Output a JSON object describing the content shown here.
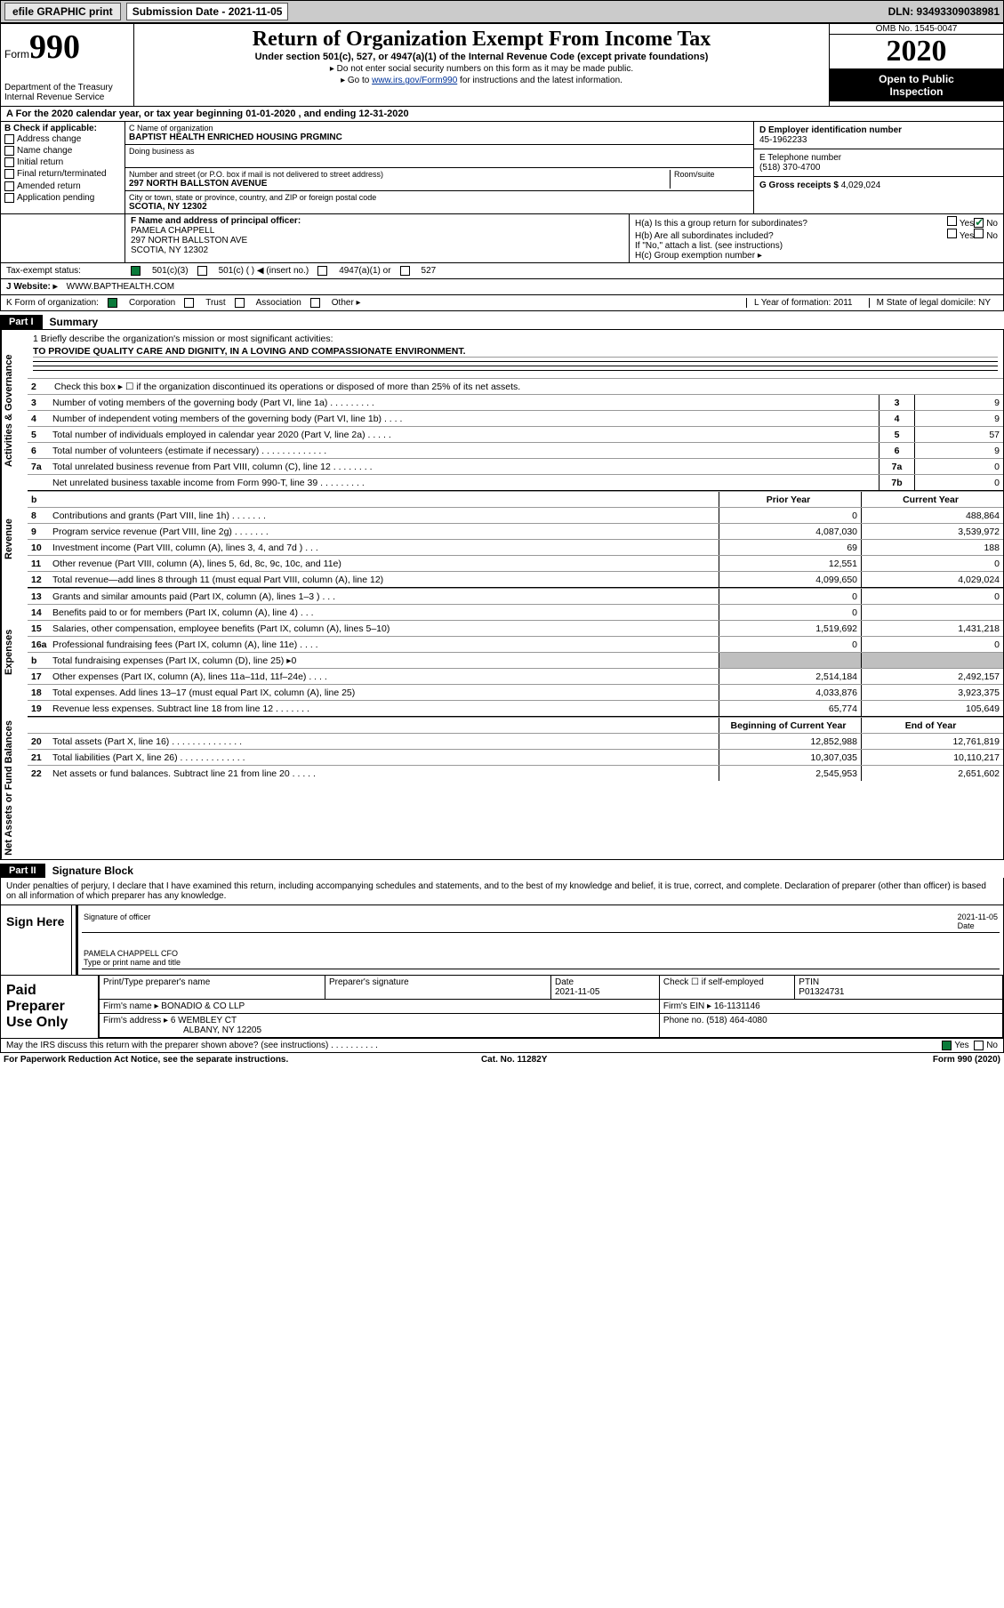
{
  "topbar": {
    "efile_label": "efile GRAPHIC print",
    "subdate_label": "Submission Date - 2021-11-05",
    "dln": "DLN: 93493309038981"
  },
  "header": {
    "form_prefix": "Form",
    "form_num": "990",
    "dept1": "Department of the Treasury",
    "dept2": "Internal Revenue Service",
    "title": "Return of Organization Exempt From Income Tax",
    "sub": "Under section 501(c), 527, or 4947(a)(1) of the Internal Revenue Code (except private foundations)",
    "inst1": "▸ Do not enter social security numbers on this form as it may be made public.",
    "inst2_pre": "▸ Go to ",
    "inst2_link": "www.irs.gov/Form990",
    "inst2_post": " for instructions and the latest information.",
    "omb": "OMB No. 1545-0047",
    "year": "2020",
    "open1": "Open to Public",
    "open2": "Inspection"
  },
  "period": "For the 2020 calendar year, or tax year beginning 01-01-2020   , and ending 12-31-2020",
  "boxB": {
    "label": "B Check if applicable:",
    "items": [
      "Address change",
      "Name change",
      "Initial return",
      "Final return/terminated",
      "Amended return",
      "Application pending"
    ]
  },
  "boxC": {
    "name_lbl": "C Name of organization",
    "name": "BAPTIST HEALTH ENRICHED HOUSING PRGMINC",
    "dba_lbl": "Doing business as",
    "street_lbl": "Number and street (or P.O. box if mail is not delivered to street address)",
    "room_lbl": "Room/suite",
    "street": "297 NORTH BALLSTON AVENUE",
    "city_lbl": "City or town, state or province, country, and ZIP or foreign postal code",
    "city": "SCOTIA, NY  12302"
  },
  "boxD": {
    "lbl": "D Employer identification number",
    "val": "45-1962233"
  },
  "boxE": {
    "lbl": "E Telephone number",
    "val": "(518) 370-4700"
  },
  "boxG": {
    "lbl": "G Gross receipts $",
    "val": "4,029,024"
  },
  "boxF": {
    "lbl": "F  Name and address of principal officer:",
    "name": "PAMELA CHAPPELL",
    "street": "297 NORTH BALLSTON AVE",
    "city": "SCOTIA, NY  12302"
  },
  "boxH": {
    "a": "H(a)  Is this a group return for subordinates?",
    "b": "H(b)  Are all subordinates included?",
    "b2": "If \"No,\" attach a list. (see instructions)",
    "c": "H(c)  Group exemption number ▸",
    "yes": "Yes",
    "no": "No"
  },
  "taxstatus": {
    "lbl": "Tax-exempt status:",
    "c3": "501(c)(3)",
    "c": "501(c) (  ) ◀ (insert no.)",
    "a1": "4947(a)(1) or",
    "s527": "527"
  },
  "siteJ": {
    "lbl": "J    Website: ▸",
    "val": "WWW.BAPTHEALTH.COM"
  },
  "korg": {
    "lbl": "K Form of organization:",
    "corp": "Corporation",
    "trust": "Trust",
    "assoc": "Association",
    "other": "Other ▸",
    "L": "L Year of formation: 2011",
    "M": "M State of legal domicile: NY"
  },
  "part1": {
    "blk": "Part I",
    "ttl": "Summary"
  },
  "summary": {
    "q1": "1   Briefly describe the organization's mission or most significant activities:",
    "mission": "TO PROVIDE QUALITY CARE AND DIGNITY, IN A LOVING AND COMPASSIONATE ENVIRONMENT.",
    "q2": "Check this box ▸ ☐  if the organization discontinued its operations or disposed of more than 25% of its net assets."
  },
  "gov": {
    "rows": [
      {
        "n": "3",
        "t": "Number of voting members of the governing body (Part VI, line 1a)   .    .    .    .    .    .    .    .    .",
        "b": "3",
        "v": "9"
      },
      {
        "n": "4",
        "t": "Number of independent voting members of the governing body (Part VI, line 1b)    .    .    .    .",
        "b": "4",
        "v": "9"
      },
      {
        "n": "5",
        "t": "Total number of individuals employed in calendar year 2020 (Part V, line 2a)    .    .    .    .    .",
        "b": "5",
        "v": "57"
      },
      {
        "n": "6",
        "t": "Total number of volunteers (estimate if necessary)    .    .    .    .    .    .    .    .    .    .    .    .    .",
        "b": "6",
        "v": "9"
      },
      {
        "n": "7a",
        "t": "Total unrelated business revenue from Part VIII, column (C), line 12    .    .    .    .    .    .    .    .",
        "b": "7a",
        "v": "0"
      },
      {
        "n": "",
        "t": "Net unrelated business taxable income from Form 990-T, line 39    .    .    .    .    .    .    .    .    .",
        "b": "7b",
        "v": "0"
      }
    ]
  },
  "colhdr": {
    "prior": "Prior Year",
    "curr": "Current Year",
    "beg": "Beginning of Current Year",
    "end": "End of Year"
  },
  "revenue": [
    {
      "n": "8",
      "t": "Contributions and grants (Part VIII, line 1h)    .    .    .    .    .    .    .",
      "p": "0",
      "c": "488,864"
    },
    {
      "n": "9",
      "t": "Program service revenue (Part VIII, line 2g)    .    .    .    .    .    .    .",
      "p": "4,087,030",
      "c": "3,539,972"
    },
    {
      "n": "10",
      "t": "Investment income (Part VIII, column (A), lines 3, 4, and 7d )    .    .    .",
      "p": "69",
      "c": "188"
    },
    {
      "n": "11",
      "t": "Other revenue (Part VIII, column (A), lines 5, 6d, 8c, 9c, 10c, and 11e)",
      "p": "12,551",
      "c": "0"
    },
    {
      "n": "12",
      "t": "Total revenue—add lines 8 through 11 (must equal Part VIII, column (A), line 12)",
      "p": "4,099,650",
      "c": "4,029,024"
    }
  ],
  "expenses": [
    {
      "n": "13",
      "t": "Grants and similar amounts paid (Part IX, column (A), lines 1–3 )    .    .    .",
      "p": "0",
      "c": "0"
    },
    {
      "n": "14",
      "t": "Benefits paid to or for members (Part IX, column (A), line 4)    .    .    .",
      "p": "0",
      "c": ""
    },
    {
      "n": "15",
      "t": "Salaries, other compensation, employee benefits (Part IX, column (A), lines 5–10)",
      "p": "1,519,692",
      "c": "1,431,218"
    },
    {
      "n": "16a",
      "t": "Professional fundraising fees (Part IX, column (A), line 11e)    .    .    .    .",
      "p": "0",
      "c": "0"
    },
    {
      "n": "b",
      "t": "Total fundraising expenses (Part IX, column (D), line 25) ▸0",
      "p": "",
      "c": "",
      "shade": true
    },
    {
      "n": "17",
      "t": "Other expenses (Part IX, column (A), lines 11a–11d, 11f–24e)    .    .    .    .",
      "p": "2,514,184",
      "c": "2,492,157"
    },
    {
      "n": "18",
      "t": "Total expenses. Add lines 13–17 (must equal Part IX, column (A), line 25)",
      "p": "4,033,876",
      "c": "3,923,375"
    },
    {
      "n": "19",
      "t": "Revenue less expenses. Subtract line 18 from line 12    .    .    .    .    .    .    .",
      "p": "65,774",
      "c": "105,649"
    }
  ],
  "netassets": [
    {
      "n": "20",
      "t": "Total assets (Part X, line 16)    .    .    .    .    .    .    .    .    .    .    .    .    .    .",
      "p": "12,852,988",
      "c": "12,761,819"
    },
    {
      "n": "21",
      "t": "Total liabilities (Part X, line 26)    .    .    .    .    .    .    .    .    .    .    .    .    .",
      "p": "10,307,035",
      "c": "10,110,217"
    },
    {
      "n": "22",
      "t": "Net assets or fund balances. Subtract line 21 from line 20    .    .    .    .    .",
      "p": "2,545,953",
      "c": "2,651,602"
    }
  ],
  "part2": {
    "blk": "Part II",
    "ttl": "Signature Block"
  },
  "perjury": "Under penalties of perjury, I declare that I have examined this return, including accompanying schedules and statements, and to the best of my knowledge and belief, it is true, correct, and complete. Declaration of preparer (other than officer) is based on all information of which preparer has any knowledge.",
  "sign": {
    "here": "Sign Here",
    "sigoff": "Signature of officer",
    "date_lbl": "Date",
    "date": "2021-11-05",
    "name": "PAMELA CHAPPELL CFO",
    "typelbl": "Type or print name and title"
  },
  "paid": {
    "lab": "Paid Preparer Use Only",
    "h1": "Print/Type preparer's name",
    "h2": "Preparer's signature",
    "h3_lbl": "Date",
    "h3": "2021-11-05",
    "h4": "Check ☐ if self-employed",
    "h5_lbl": "PTIN",
    "h5": "P01324731",
    "firm_lbl": "Firm's name    ▸",
    "firm": "BONADIO & CO LLP",
    "ein_lbl": "Firm's EIN ▸",
    "ein": "16-1131146",
    "addr_lbl": "Firm's address ▸",
    "addr1": "6 WEMBLEY CT",
    "addr2": "ALBANY, NY 12205",
    "phone_lbl": "Phone no.",
    "phone": "(518) 464-4080"
  },
  "irs_discuss": "May the IRS discuss this return with the preparer shown above? (see instructions)    .    .    .    .    .    .    .    .    .    .",
  "yes": "Yes",
  "no": "No",
  "footer": {
    "pra": "For Paperwork Reduction Act Notice, see the separate instructions.",
    "cat": "Cat. No. 11282Y",
    "form": "Form 990 (2020)"
  },
  "vlabels": {
    "gov": "Activities & Governance",
    "rev": "Revenue",
    "exp": "Expenses",
    "net": "Net Assets or Fund Balances"
  }
}
